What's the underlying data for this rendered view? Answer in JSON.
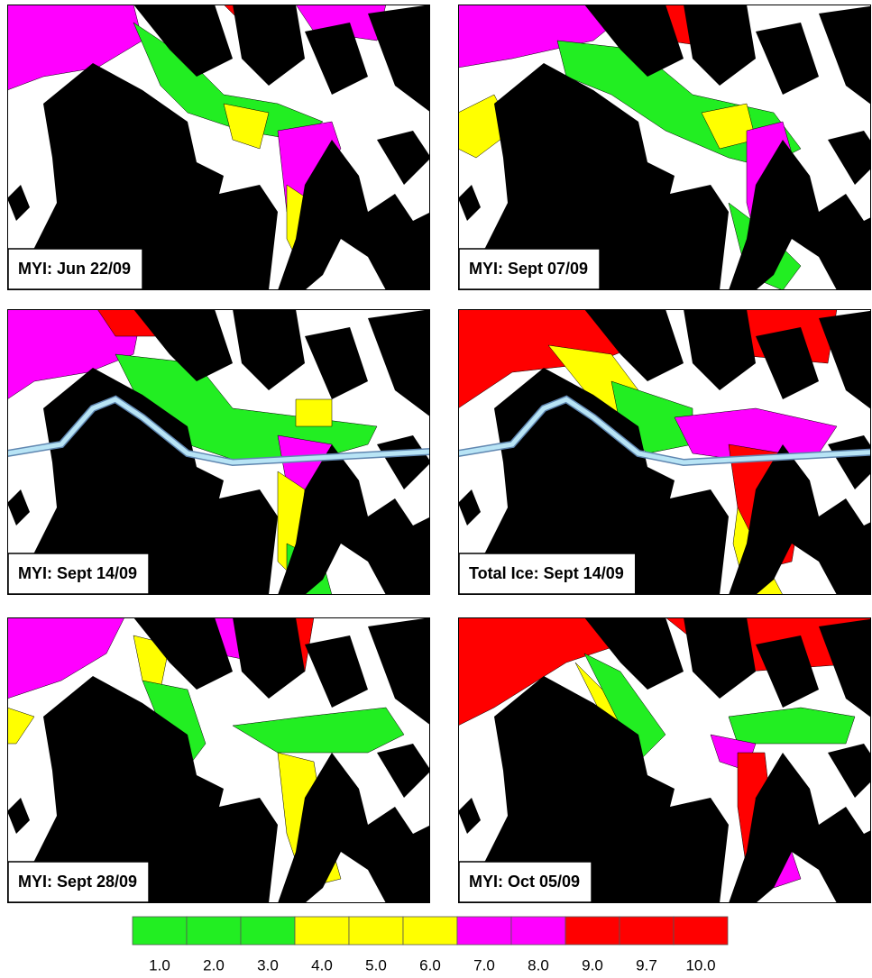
{
  "panels": [
    {
      "label": "MYI: Jun 22/09"
    },
    {
      "label": "MYI: Sept 07/09"
    },
    {
      "label": "MYI: Sept 14/09"
    },
    {
      "label": "Total Ice: Sept 14/09"
    },
    {
      "label": "MYI: Sept 28/09"
    },
    {
      "label": "MYI: Oct 05/09"
    }
  ],
  "legend": {
    "items": [
      {
        "label": "1.0",
        "color": "#22ee22"
      },
      {
        "label": "2.0",
        "color": "#22ee22"
      },
      {
        "label": "3.0",
        "color": "#22ee22"
      },
      {
        "label": "4.0",
        "color": "#ffff00"
      },
      {
        "label": "5.0",
        "color": "#ffff00"
      },
      {
        "label": "6.0",
        "color": "#ffff00"
      },
      {
        "label": "7.0",
        "color": "#ff00ff"
      },
      {
        "label": "8.0",
        "color": "#ff00ff"
      },
      {
        "label": "9.0",
        "color": "#ff0000"
      },
      {
        "label": "9.7",
        "color": "#ff0000"
      },
      {
        "label": "10.0",
        "color": "#ff0000"
      }
    ]
  }
}
